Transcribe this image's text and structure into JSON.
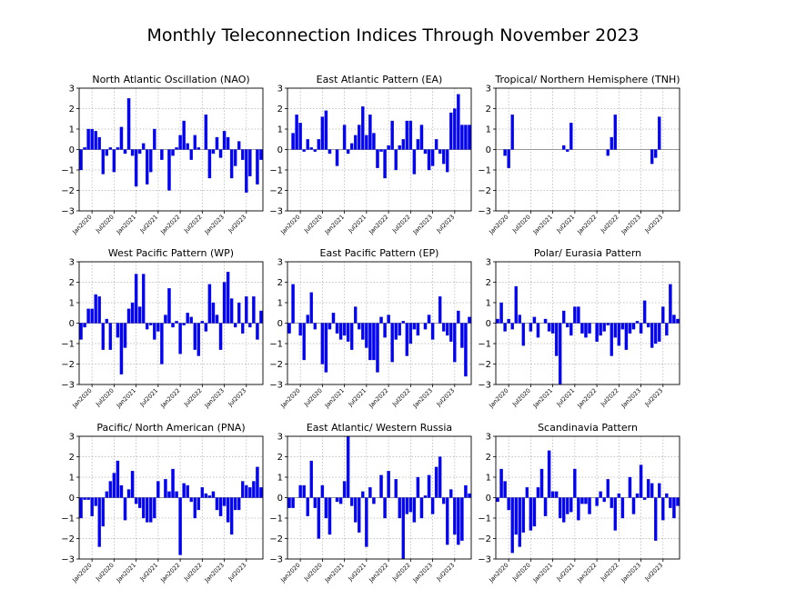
{
  "title": "Monthly Teleconnection Indices Through November 2023",
  "colors": {
    "bar": "#0000ff",
    "bar_edge": "#1a1aaa",
    "grid": "#b0b0b0",
    "axis": "#000000",
    "zero_line": "#808080"
  },
  "chart_data": [
    {
      "type": "bar",
      "title": "North Atlantic Oscillation (NAO)",
      "x_start": "2019-10",
      "x_end": "2023-11",
      "x_ticks": [
        "Jan2020",
        "Jul2020",
        "Jan2021",
        "Jul2021",
        "Jan2022",
        "Jul2022",
        "Jan2023",
        "Jul2023"
      ],
      "ylim": [
        -3,
        3
      ],
      "yticks": [
        -3,
        -2,
        -1,
        0,
        1,
        2,
        3
      ],
      "grid": true,
      "values": [
        -1.0,
        0.1,
        1.0,
        1.0,
        0.9,
        0.6,
        -1.2,
        -0.3,
        0.1,
        -1.1,
        0.1,
        1.1,
        -0.2,
        2.5,
        -0.3,
        -1.8,
        -0.2,
        0.3,
        -1.7,
        -1.1,
        1.0,
        0.0,
        -0.5,
        0.0,
        -2.0,
        -0.3,
        0.1,
        0.7,
        1.4,
        0.3,
        -0.5,
        0.7,
        0.1,
        0.0,
        1.7,
        -1.4,
        -0.2,
        0.6,
        -0.4,
        0.9,
        0.6,
        -1.4,
        -0.8,
        0.4,
        -0.5,
        -2.1,
        -1.3,
        0.0,
        -1.7,
        -0.5
      ]
    },
    {
      "type": "bar",
      "title": "East Atlantic Pattern (EA)",
      "x_start": "2019-10",
      "x_end": "2023-11",
      "x_ticks": [
        "Jan2020",
        "Jul2020",
        "Jan2021",
        "Jul2021",
        "Jan2022",
        "Jul2022",
        "Jan2023",
        "Jul2023"
      ],
      "ylim": [
        -3,
        3
      ],
      "yticks": [
        -3,
        -2,
        -1,
        0,
        1,
        2,
        3
      ],
      "grid": true,
      "values": [
        0.0,
        0.8,
        1.7,
        1.3,
        -0.1,
        0.5,
        0.1,
        -0.1,
        0.5,
        1.6,
        1.9,
        -0.2,
        0.0,
        -0.8,
        0.0,
        1.2,
        -0.2,
        0.3,
        0.7,
        1.2,
        2.1,
        0.7,
        1.7,
        0.8,
        -0.9,
        -0.1,
        -1.4,
        0.2,
        1.4,
        -1.0,
        0.2,
        0.5,
        1.4,
        1.4,
        -1.2,
        0.5,
        1.2,
        -0.2,
        -1.0,
        -0.8,
        0.5,
        -0.2,
        -0.7,
        -1.1,
        1.8,
        2.0,
        2.7,
        1.2,
        1.2,
        1.2
      ]
    },
    {
      "type": "bar",
      "title": "Tropical/ Northern Hemisphere (TNH)",
      "x_start": "2019-10",
      "x_end": "2023-11",
      "x_ticks": [
        "Jan2020",
        "Jul2020",
        "Jan2021",
        "Jul2021",
        "Jan2022",
        "Jul2022",
        "Jan2023",
        "Jul2023"
      ],
      "ylim": [
        -3,
        3
      ],
      "yticks": [
        -3,
        -2,
        -1,
        0,
        1,
        2,
        3
      ],
      "grid": true,
      "values": [
        0,
        0,
        -0.3,
        -0.9,
        1.7,
        0,
        0,
        0,
        0,
        0,
        0,
        0,
        0,
        0,
        0,
        0,
        0,
        0,
        0.2,
        -0.1,
        1.3,
        0,
        0,
        0,
        0,
        0,
        0,
        0,
        0,
        0,
        -0.3,
        0.6,
        1.7,
        0,
        0,
        0,
        0,
        0,
        0,
        0,
        0,
        0,
        -0.7,
        -0.4,
        1.6,
        0,
        0,
        0,
        0,
        0
      ]
    },
    {
      "type": "bar",
      "title": "West Pacific Pattern (WP)",
      "x_start": "2019-10",
      "x_end": "2023-11",
      "x_ticks": [
        "Jan2020",
        "Jul2020",
        "Jan2021",
        "Jul2021",
        "Jan2022",
        "Jul2022",
        "Jan2023",
        "Jul2023"
      ],
      "ylim": [
        -3,
        3
      ],
      "yticks": [
        -3,
        -2,
        -1,
        0,
        1,
        2,
        3
      ],
      "grid": true,
      "values": [
        -0.8,
        -0.2,
        0.7,
        0.7,
        1.4,
        1.3,
        -1.3,
        0.2,
        -1.3,
        0.0,
        -0.7,
        -2.5,
        -1.2,
        0.7,
        1.0,
        2.4,
        0.8,
        2.4,
        -0.3,
        -0.1,
        -0.8,
        -0.4,
        -2.0,
        0.4,
        1.7,
        -0.2,
        0.1,
        -1.5,
        -0.1,
        0.5,
        0.3,
        -1.3,
        -1.6,
        0.1,
        -0.4,
        1.9,
        1.0,
        0.4,
        -1.3,
        2.0,
        2.5,
        1.2,
        -0.2,
        1.0,
        -0.5,
        1.3,
        -0.2,
        1.3,
        -0.8,
        0.6
      ]
    },
    {
      "type": "bar",
      "title": "East Pacific Pattern (EP)",
      "x_start": "2019-10",
      "x_end": "2023-11",
      "x_ticks": [
        "Jan2020",
        "Jul2020",
        "Jan2021",
        "Jul2021",
        "Jan2022",
        "Jul2022",
        "Jan2023",
        "Jul2023"
      ],
      "ylim": [
        -3,
        3
      ],
      "yticks": [
        -3,
        -2,
        -1,
        0,
        1,
        2,
        3
      ],
      "grid": true,
      "values": [
        -0.5,
        1.9,
        0.0,
        -0.6,
        -1.8,
        0.4,
        1.5,
        -0.3,
        0.0,
        -2.0,
        -2.4,
        -0.3,
        0.5,
        -0.5,
        -0.8,
        -0.6,
        -0.9,
        -1.3,
        0.8,
        -0.3,
        -0.8,
        -1.2,
        -1.8,
        -1.8,
        -2.4,
        0.3,
        -0.7,
        0.4,
        -1.9,
        -0.8,
        -0.6,
        0.1,
        -1.6,
        -1.0,
        -0.3,
        -0.6,
        0.0,
        -0.3,
        0.4,
        -0.8,
        0.0,
        1.3,
        -0.4,
        -0.6,
        -0.9,
        -1.9,
        0.6,
        -1.2,
        -2.6,
        0.3
      ]
    },
    {
      "type": "bar",
      "title": "Polar/ Eurasia Pattern",
      "x_start": "2019-10",
      "x_end": "2023-11",
      "x_ticks": [
        "Jan2020",
        "Jul2020",
        "Jan2021",
        "Jul2021",
        "Jan2022",
        "Jul2022",
        "Jan2023",
        "Jul2023"
      ],
      "ylim": [
        -3,
        3
      ],
      "yticks": [
        -3,
        -2,
        -1,
        0,
        1,
        2,
        3
      ],
      "grid": true,
      "values": [
        0.2,
        1.0,
        -0.4,
        0.2,
        -0.3,
        1.8,
        0.4,
        -1.1,
        0.0,
        -0.4,
        0.3,
        -0.7,
        0.0,
        0.2,
        -0.4,
        -0.5,
        -1.6,
        -3.0,
        0.6,
        -0.2,
        -0.6,
        0.8,
        0.8,
        -0.5,
        -0.7,
        -0.5,
        0.0,
        -0.9,
        -0.6,
        -0.4,
        -0.1,
        -1.6,
        -0.7,
        -1.1,
        -0.3,
        -1.3,
        -0.5,
        -0.3,
        0.1,
        -0.5,
        1.1,
        -0.2,
        -1.2,
        -1.0,
        -0.9,
        0.8,
        -0.6,
        1.9,
        0.4,
        0.2
      ]
    },
    {
      "type": "bar",
      "title": "Pacific/ North American (PNA)",
      "x_start": "2019-10",
      "x_end": "2023-11",
      "x_ticks": [
        "Jan2020",
        "Jul2020",
        "Jan2021",
        "Jul2021",
        "Jan2022",
        "Jul2022",
        "Jan2023",
        "Jul2023"
      ],
      "ylim": [
        -3,
        3
      ],
      "yticks": [
        -3,
        -2,
        -1,
        0,
        1,
        2,
        3
      ],
      "grid": true,
      "values": [
        -1.0,
        -0.1,
        -0.1,
        -0.9,
        -0.4,
        -2.4,
        -1.4,
        0.3,
        0.8,
        1.2,
        1.8,
        0.6,
        -1.1,
        0.4,
        1.3,
        -0.3,
        -0.5,
        -1.0,
        -1.2,
        -1.2,
        -1.0,
        0.8,
        0.0,
        0.9,
        0.3,
        1.4,
        0.3,
        -2.8,
        0.7,
        0.6,
        -0.2,
        -1.0,
        -0.6,
        0.5,
        0.2,
        0.1,
        0.3,
        -0.6,
        -0.9,
        -0.4,
        -1.2,
        -1.8,
        -0.6,
        -0.6,
        0.8,
        0.6,
        0.5,
        0.8,
        1.5,
        0.5
      ]
    },
    {
      "type": "bar",
      "title": "East Atlantic/ Western Russia",
      "x_start": "2019-10",
      "x_end": "2023-11",
      "x_ticks": [
        "Jan2020",
        "Jul2020",
        "Jan2021",
        "Jul2021",
        "Jan2022",
        "Jul2022",
        "Jan2023",
        "Jul2023"
      ],
      "ylim": [
        -3,
        3
      ],
      "yticks": [
        -3,
        -2,
        -1,
        0,
        1,
        2,
        3
      ],
      "grid": true,
      "values": [
        -0.5,
        -0.5,
        0.0,
        0.6,
        0.6,
        -0.9,
        1.8,
        -0.5,
        -2.0,
        0.6,
        -1.0,
        -1.8,
        0.0,
        -0.2,
        -0.3,
        0.8,
        3.0,
        -0.4,
        -1.2,
        -1.7,
        0.3,
        -2.4,
        0.5,
        -0.3,
        0.0,
        1.1,
        -1.0,
        1.3,
        0.0,
        0.9,
        -1.0,
        -3.0,
        -0.8,
        -0.7,
        -1.2,
        1.0,
        -1.0,
        0.1,
        1.1,
        -0.8,
        1.5,
        2.0,
        -0.3,
        -2.3,
        0.4,
        -1.8,
        -2.3,
        -2.1,
        0.6,
        0.2
      ]
    },
    {
      "type": "bar",
      "title": "Scandinavia Pattern",
      "x_start": "2019-10",
      "x_end": "2023-11",
      "x_ticks": [
        "Jan2020",
        "Jul2020",
        "Jan2021",
        "Jul2021",
        "Jan2022",
        "Jul2022",
        "Jan2023",
        "Jul2023"
      ],
      "ylim": [
        -3,
        3
      ],
      "yticks": [
        -3,
        -2,
        -1,
        0,
        1,
        2,
        3
      ],
      "grid": true,
      "values": [
        -0.2,
        1.4,
        0.8,
        -0.6,
        -2.7,
        -1.8,
        -2.4,
        -1.7,
        0.5,
        -1.6,
        -1.4,
        0.5,
        1.4,
        -0.9,
        2.3,
        0.3,
        0.3,
        -1.0,
        -1.2,
        -0.8,
        -0.7,
        1.4,
        -1.1,
        -0.3,
        -0.3,
        -0.8,
        0.0,
        -0.4,
        0.3,
        -0.2,
        0.9,
        -0.5,
        -1.6,
        0.2,
        -1.0,
        0.0,
        1.0,
        -0.8,
        0.2,
        1.6,
        -0.1,
        0.9,
        0.7,
        -2.1,
        0.7,
        -1.1,
        0.2,
        -0.5,
        -1.0,
        -0.4
      ]
    }
  ]
}
